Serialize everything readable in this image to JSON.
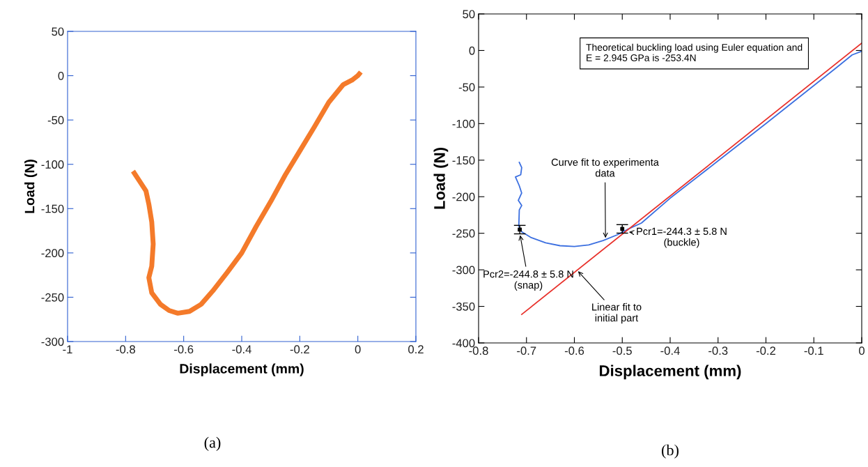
{
  "chart_data": [
    {
      "type": "line",
      "xlabel": "Displacement (mm)",
      "ylabel": "Load (N)",
      "xlim": [
        -1,
        0.2
      ],
      "ylim": [
        -300,
        50
      ],
      "xticks": [
        -1,
        -0.8,
        -0.6,
        -0.4,
        -0.2,
        0,
        0.2
      ],
      "yticks": [
        -300,
        -250,
        -200,
        -150,
        -100,
        -50,
        0,
        50
      ],
      "grid": false,
      "legend": false,
      "marker": "none",
      "line_style": "solid",
      "series": [
        {
          "color": "#f47a2a",
          "x": [
            -0.77,
            -0.75,
            -0.73,
            -0.72,
            -0.71,
            -0.705,
            -0.71,
            -0.72,
            -0.71,
            -0.68,
            -0.65,
            -0.62,
            -0.58,
            -0.54,
            -0.5,
            -0.45,
            -0.4,
            -0.35,
            -0.3,
            -0.25,
            -0.2,
            -0.15,
            -0.1,
            -0.05,
            -0.02,
            0,
            0.005
          ],
          "values": [
            -110,
            -120,
            -130,
            -145,
            -165,
            -190,
            -215,
            -228,
            -245,
            -258,
            -265,
            -268,
            -266,
            -258,
            -243,
            -222,
            -200,
            -170,
            -142,
            -112,
            -85,
            -58,
            -30,
            -10,
            -5,
            0,
            2
          ]
        }
      ],
      "annotations": [
        "(a)"
      ]
    },
    {
      "type": "line",
      "xlabel": "Displacement (mm)",
      "ylabel": "Load (N)",
      "xlim": [
        -0.8,
        0
      ],
      "ylim": [
        -400,
        50
      ],
      "xticks": [
        -0.8,
        -0.7,
        -0.6,
        -0.5,
        -0.4,
        -0.3,
        -0.2,
        -0.1,
        0
      ],
      "yticks": [
        -400,
        -350,
        -300,
        -250,
        -200,
        -150,
        -100,
        -50,
        0,
        50
      ],
      "grid": false,
      "legend": false,
      "marker": "none",
      "line_style": "solid",
      "series": [
        {
          "color": "#3b6fe0",
          "x": [
            -0.715,
            -0.71,
            -0.712,
            -0.723,
            -0.715,
            -0.71,
            -0.717,
            -0.71,
            -0.715,
            -0.716,
            -0.71,
            -0.69,
            -0.66,
            -0.63,
            -0.6,
            -0.57,
            -0.54,
            -0.51,
            -0.49,
            -0.46,
            -0.4,
            -0.3,
            -0.2,
            -0.1,
            -0.05,
            -0.02,
            0
          ],
          "values": [
            -153,
            -160,
            -170,
            -173,
            -185,
            -195,
            -205,
            -212,
            -218,
            -240,
            -248,
            -256,
            -263,
            -267,
            -268,
            -266,
            -260,
            -252,
            -245,
            -236,
            -202,
            -151,
            -100,
            -48,
            -22,
            -6,
            -1
          ]
        },
        {
          "color": "#e8302a",
          "x": [
            -0.71,
            0
          ],
          "values": [
            -361,
            10
          ]
        },
        {
          "type": "scatter",
          "marker": "square",
          "color": "#000000",
          "x": [
            -0.714,
            -0.5
          ],
          "values": [
            -245,
            -244
          ],
          "errors": [
            5.8,
            5.8
          ]
        }
      ],
      "annotations": [
        "Theoretical buckling load using Euler equation and\nE = 2.945 GPa is -253.4N",
        {
          "text": "Curve fit to experimenta\ndata",
          "x": -0.535,
          "y": -259
        },
        {
          "text": "Pcr1=-244.3 ± 5.8 N\n(buckle)",
          "x": -0.49,
          "y": -248
        },
        {
          "text": "Pcr2=-244.8 ± 5.8 N\n(snap)",
          "x": -0.714,
          "y": -250
        },
        {
          "text": "Linear fit to\ninitial part",
          "x": -0.595,
          "y": -300
        },
        "(b)"
      ]
    }
  ]
}
